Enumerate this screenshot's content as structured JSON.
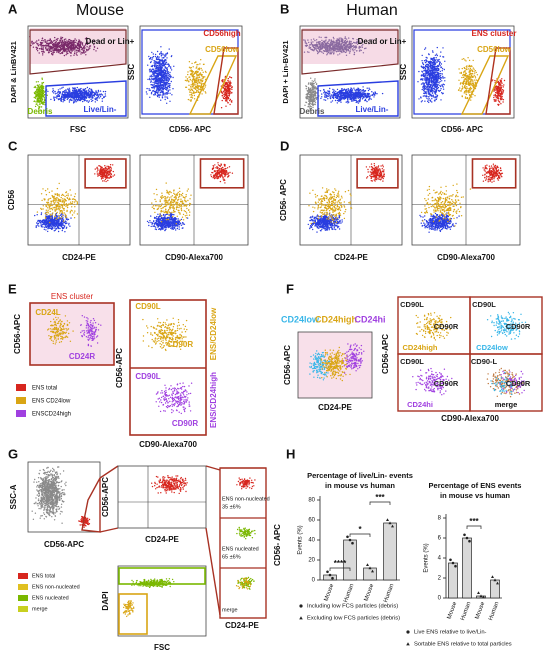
{
  "figure": {
    "A": {
      "letter": "A",
      "title": "Mouse",
      "y1": "DAPI & LinBV421",
      "x1": "FSC",
      "g1": "Dead or Lin+",
      "g2": "Debris",
      "g3": "Live/Lin-",
      "y2": "SSC",
      "x2": "CD56- APC",
      "g4": "CD56high",
      "g5": "CD56low"
    },
    "B": {
      "letter": "B",
      "title": "Human",
      "y1": "DAPI + Lin-BV421",
      "x1": "FSC-A",
      "g1": "Dead or Lin+",
      "g2": "Debris",
      "g3": "Live/Lin-",
      "y2": "SSC",
      "x2": "CD56- APC",
      "g4": "ENS cluster",
      "g5": "CD56low"
    },
    "C": {
      "letter": "C",
      "y": "CD56",
      "x1": "CD24-PE",
      "x2": "CD90-Alexa700"
    },
    "D": {
      "letter": "D",
      "y": "CD56- APC",
      "x1": "CD24-PE",
      "x2": "CD90-Alexa700"
    },
    "E": {
      "letter": "E",
      "cluster": "ENS cluster",
      "y1": "CD56-APC",
      "g1": "CD24L",
      "g2": "CD24R",
      "legend": [
        "ENS total",
        "ENS CD24low",
        "ENSCD24high"
      ],
      "y2": "CD56-APC",
      "x2": "CD90-Alexa700",
      "g3": "CD90L",
      "g4": "CD90R",
      "g5": "CD90L",
      "g6": "CD90R",
      "side1": "ENS/CD24low",
      "side2": "ENS/CD24high"
    },
    "F": {
      "letter": "F",
      "h1": "CD24low",
      "h2": "CD24high",
      "h3": "CD24hi",
      "y1": "CD56-APC",
      "x1": "CD24-PE",
      "q": [
        [
          "CD90L",
          "CD90R",
          "CD24high"
        ],
        [
          "CD90L",
          "CD90R",
          "CD24low"
        ],
        [
          "CD90L",
          "CD90R",
          "CD24hi"
        ],
        [
          "CD90-L",
          "CD90R",
          "merge"
        ]
      ],
      "y2": "CD56-APC",
      "x2": "CD90-Alexa700"
    },
    "G": {
      "letter": "G",
      "y1": "SSC-A",
      "x1": "CD56-APC",
      "y2": "CD56-APC",
      "x2": "CD24-PE",
      "y3": "DAPI",
      "x3": "FSC",
      "s1": "ENS non-nucleated",
      "s2": "35 ±6%",
      "s3": "ENS nucleated",
      "s4": "65 ±6%",
      "s5": "merge",
      "y4": "CD56- APC",
      "x4": "CD24-PE",
      "legend": [
        "ENS total",
        "ENS non-nucleated",
        "ENS nucleated",
        "merge"
      ]
    },
    "H": {
      "letter": "H"
    }
  },
  "chart_data": [
    {
      "type": "bar",
      "title": [
        "Percentage of live/Lin- events",
        "in mouse vs human"
      ],
      "ylabel": "Events (%)",
      "categories": [
        "Mouse",
        "Human",
        "Mouse",
        "Human"
      ],
      "values": [
        5,
        40,
        12,
        57
      ],
      "color": "#d9d9d9",
      "ylim": [
        0,
        80
      ],
      "yticks": [
        0,
        20,
        40,
        60,
        80
      ],
      "annotations": [
        "****",
        "*",
        "***"
      ],
      "legend": [
        "Including low FCS particles (debris)",
        "Excluding low FCS particles (debris)"
      ]
    },
    {
      "type": "bar",
      "title": [
        "Percentage of ENS events",
        "in mouse vs human"
      ],
      "ylabel": "Events (%)",
      "categories": [
        "Mouse",
        "Human",
        "Mouse",
        "Human"
      ],
      "values": [
        3.5,
        6,
        0.2,
        1.8
      ],
      "color": "#d9d9d9",
      "ylim": [
        0,
        8
      ],
      "yticks": [
        0,
        2,
        4,
        6,
        8
      ],
      "annotations": [
        "***"
      ],
      "legend": [
        "Live ENS relative to live/Lin-",
        "Sortable ENS relative to total particles"
      ]
    }
  ]
}
